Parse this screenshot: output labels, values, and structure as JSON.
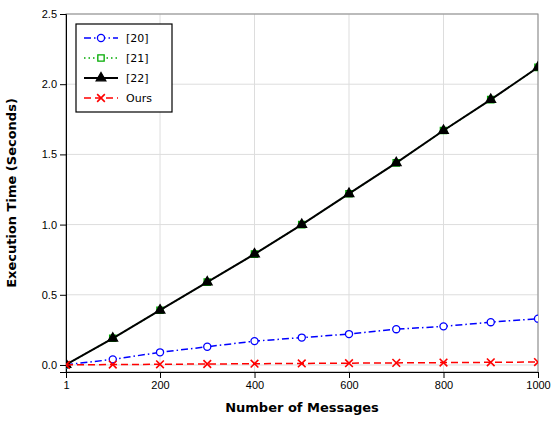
{
  "chart_data": {
    "type": "line",
    "xlabel": "Number of Messages",
    "ylabel": "Execution Time (Seconds)",
    "x": [
      1,
      100,
      200,
      300,
      400,
      500,
      600,
      700,
      800,
      900,
      1000
    ],
    "xlim": [
      1,
      1000
    ],
    "xticks": [
      1,
      200,
      400,
      600,
      800,
      1000
    ],
    "ylim": [
      -0.05,
      2.5
    ],
    "yticks": [
      {
        "value": 0,
        "label": "0.0"
      },
      0.5,
      {
        "value": 1,
        "label": "1.0"
      },
      1.5,
      {
        "value": 2,
        "label": "2.0"
      },
      2.5
    ],
    "grid": true,
    "legend": "upper left",
    "series": [
      {
        "name": "[20]",
        "color": "#0000ff",
        "line_style": "dashdot",
        "marker": "circle-open",
        "values": [
          0.002,
          0.04,
          0.09,
          0.13,
          0.17,
          0.195,
          0.22,
          0.255,
          0.275,
          0.305,
          0.33
        ]
      },
      {
        "name": "[21]",
        "color": "#00aa00",
        "line_style": "dotted",
        "marker": "square-open",
        "values": [
          0.002,
          0.19,
          0.39,
          0.59,
          0.79,
          1.0,
          1.22,
          1.44,
          1.67,
          1.89,
          2.12
        ]
      },
      {
        "name": "[22]",
        "color": "#000000",
        "line_style": "solid",
        "marker": "triangle",
        "values": [
          0.002,
          0.19,
          0.39,
          0.59,
          0.79,
          1.0,
          1.22,
          1.44,
          1.67,
          1.89,
          2.12
        ]
      },
      {
        "name": "Ours",
        "color": "#ff0000",
        "line_style": "dashed",
        "marker": "x",
        "values": [
          0.0005,
          0.003,
          0.005,
          0.007,
          0.009,
          0.011,
          0.013,
          0.015,
          0.017,
          0.019,
          0.021
        ]
      }
    ]
  }
}
